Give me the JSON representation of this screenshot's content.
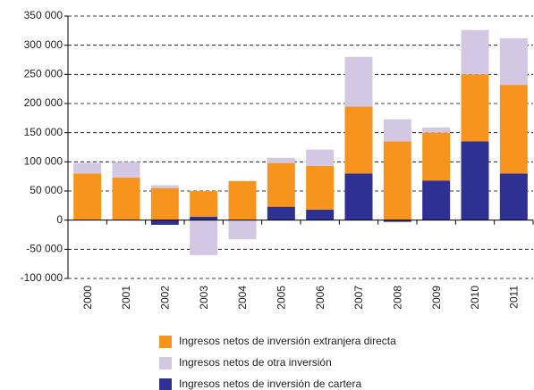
{
  "chart_data": {
    "type": "stacked_bar",
    "categories": [
      "2000",
      "2001",
      "2002",
      "2003",
      "2004",
      "2005",
      "2006",
      "2007",
      "2008",
      "2009",
      "2010",
      "2011"
    ],
    "series": [
      {
        "name": "Ingresos netos de inversión extranjera directa",
        "color": "#f7941d",
        "values": [
          80000,
          73000,
          55000,
          44000,
          67000,
          75000,
          75000,
          115000,
          135000,
          82000,
          115000,
          152000
        ]
      },
      {
        "name": "Ingresos netos de otra inversión",
        "color": "#d3c8e4",
        "values": [
          18000,
          27000,
          5000,
          -60000,
          -33000,
          9000,
          28000,
          85000,
          38000,
          9000,
          76000,
          80000
        ]
      },
      {
        "name": "Ingresos netos de inversión de cartera",
        "color": "#2e3192",
        "values": [
          0,
          0,
          -8000,
          6000,
          0,
          23000,
          18000,
          80000,
          -3000,
          68000,
          135000,
          80000
        ]
      }
    ],
    "ylim": [
      -100000,
      350000
    ],
    "yticks": [
      {
        "value": -100000,
        "label": "-100 000"
      },
      {
        "value": -50000,
        "label": "-50 000"
      },
      0,
      {
        "value": 50000,
        "label": "50 000"
      },
      {
        "value": 100000,
        "label": "100 000"
      },
      {
        "value": 150000,
        "label": "150 000"
      },
      {
        "value": 200000,
        "label": "200 000"
      },
      {
        "value": 250000,
        "label": "250 000"
      },
      {
        "value": 300000,
        "label": "300 000"
      },
      {
        "value": 350000,
        "label": "350 000"
      }
    ],
    "grid": true
  }
}
